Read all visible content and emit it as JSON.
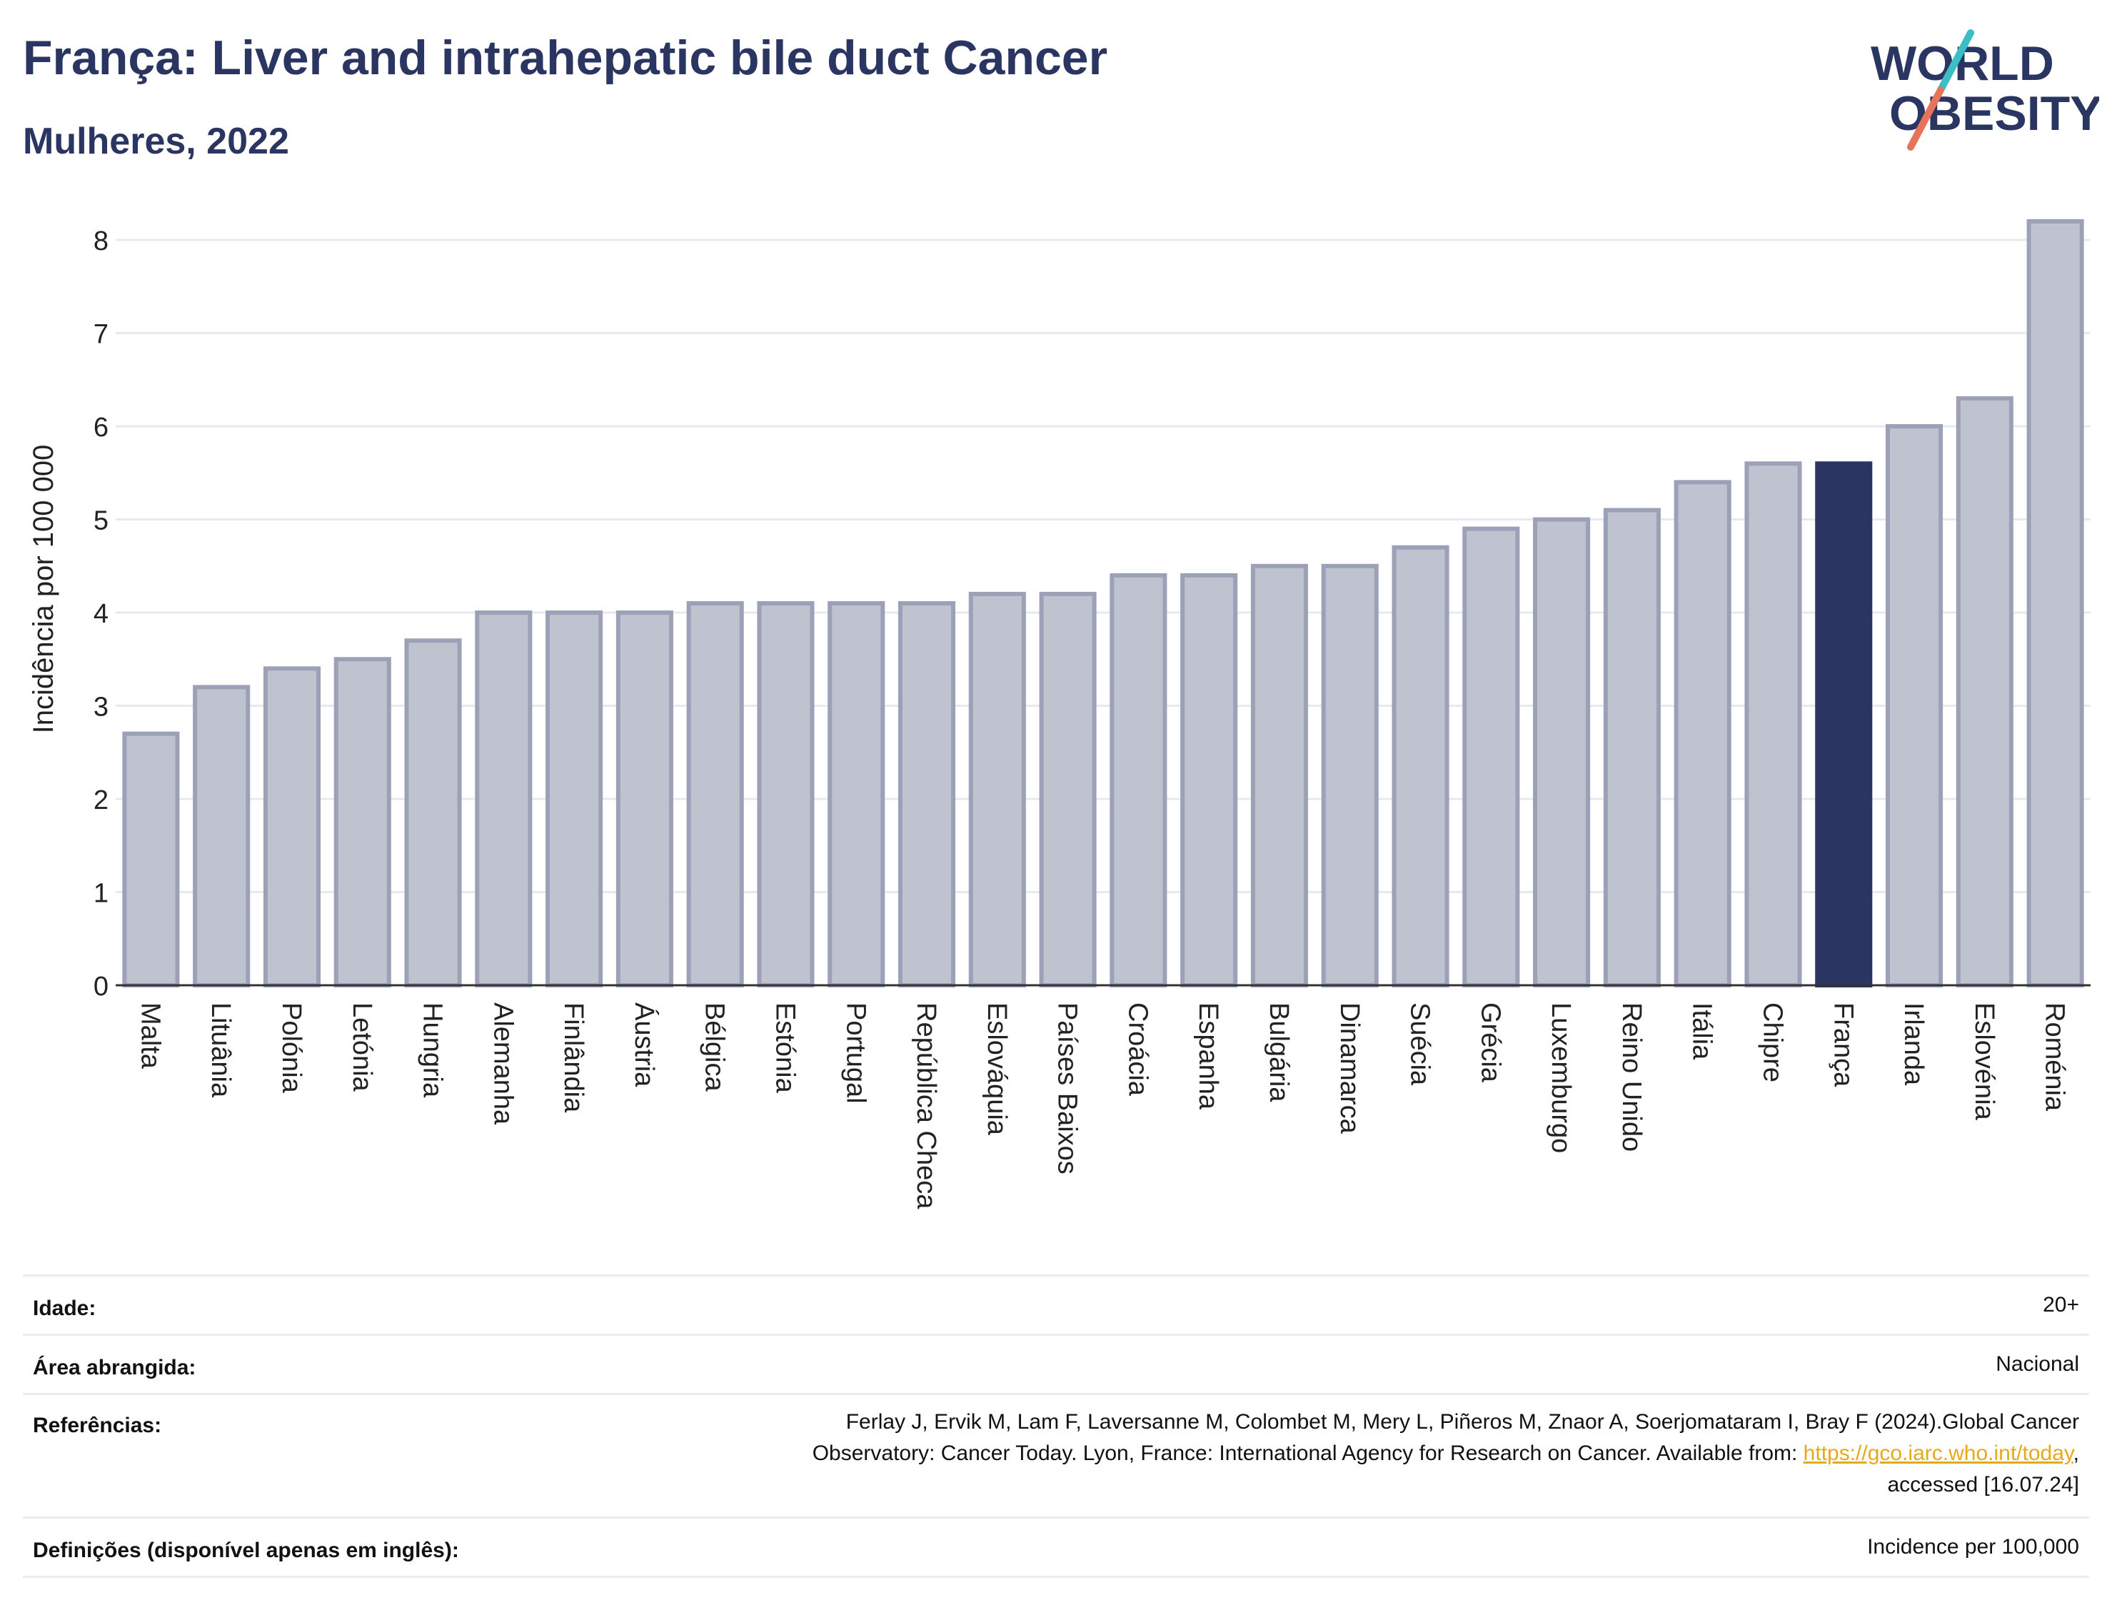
{
  "header": {
    "title": "França: Liver and intrahepatic bile duct Cancer",
    "subtitle": "Mulheres, 2022"
  },
  "logo": {
    "line1": "WORLD",
    "line2": "OBESITY",
    "accent_colors": [
      "#3bbfc4",
      "#e8735a"
    ],
    "text_color": "#2b3561"
  },
  "chart_data": {
    "type": "bar",
    "ylabel": "Incidência por 100 000",
    "ylim": [
      0,
      8.2
    ],
    "yticks": [
      0,
      1,
      2,
      3,
      4,
      5,
      6,
      7,
      8
    ],
    "grid": true,
    "highlight": "França",
    "colors": {
      "bar": "#bfc2cf",
      "bar_edge": "#9da1b8",
      "highlight": "#2b3561"
    },
    "categories": [
      "Malta",
      "Lituânia",
      "Polónia",
      "Letónia",
      "Hungria",
      "Alemanha",
      "Finlândia",
      "Áustria",
      "Bélgica",
      "Estónia",
      "Portugal",
      "República Checa",
      "Eslováquia",
      "Países Baixos",
      "Croácia",
      "Espanha",
      "Bulgária",
      "Dinamarca",
      "Suécia",
      "Grécia",
      "Luxemburgo",
      "Reino Unido",
      "Itália",
      "Chipre",
      "França",
      "Irlanda",
      "Eslovénia",
      "Roménia"
    ],
    "values": [
      2.7,
      3.2,
      3.4,
      3.5,
      3.7,
      4.0,
      4.0,
      4.0,
      4.1,
      4.1,
      4.1,
      4.1,
      4.2,
      4.2,
      4.4,
      4.4,
      4.5,
      4.5,
      4.7,
      4.9,
      5.0,
      5.1,
      5.4,
      5.6,
      5.6,
      6.0,
      6.3,
      8.2
    ]
  },
  "meta": {
    "age_label": "Idade:",
    "age_value": "20+",
    "area_label": "Área abrangida:",
    "area_value": "Nacional",
    "ref_label": "Referências:",
    "ref_line1": "Ferlay J, Ervik M, Lam F, Laversanne M, Colombet M, Mery L, Piñeros M, Znaor A, Soerjomataram I, Bray F (2024).Global Cancer",
    "ref_line2_pre": "Observatory: Cancer Today. Lyon, France: International Agency for Research on Cancer. Available from: ",
    "ref_link": "https://gco.iarc.who.int/today",
    "ref_line2_post": ",",
    "ref_line3": "accessed [16.07.24]",
    "def_label": "Definições (disponível apenas em inglês):",
    "def_value": "Incidence per 100,000"
  }
}
